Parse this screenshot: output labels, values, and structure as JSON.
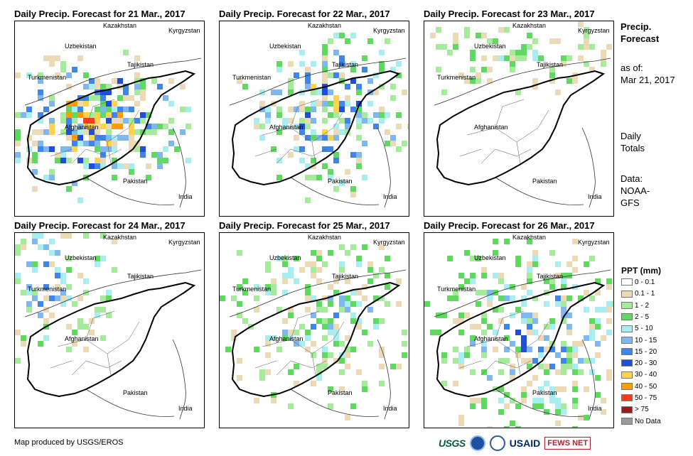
{
  "panels": [
    {
      "title": "Daily Precip. Forecast for 21 Mar., 2017",
      "precip": "heavy"
    },
    {
      "title": "Daily Precip. Forecast for 22 Mar., 2017",
      "precip": "moderate"
    },
    {
      "title": "Daily Precip. Forecast for 23 Mar., 2017",
      "precip": "light"
    },
    {
      "title": "Daily Precip. Forecast for 24 Mar., 2017",
      "precip": "light-northwest"
    },
    {
      "title": "Daily Precip. Forecast for 25 Mar., 2017",
      "precip": "scattered"
    },
    {
      "title": "Daily Precip. Forecast for 26 Mar., 2017",
      "precip": "scattered-central"
    }
  ],
  "map_labels": {
    "kazakhstan": "Kazakhstan",
    "kyrgyzstan": "Kyrgyzstan",
    "uzbekistan": "Uzbekistan",
    "tajikistan": "Tajikistan",
    "turkmenistan": "Turkmenistan",
    "afghanistan": "Afghanistan",
    "pakistan": "Pakistan",
    "india": "India"
  },
  "sidebar": {
    "title_line1": "Precip.",
    "title_line2": "Forecast",
    "asof_line1": "as of:",
    "asof_line2": "Mar 21, 2017",
    "totals_line1": "Daily",
    "totals_line2": "Totals",
    "data_line1": "Data:",
    "data_line2": "NOAA-",
    "data_line3": "GFS"
  },
  "legend": {
    "title": "PPT (mm)",
    "items": [
      {
        "label": "0 - 0.1",
        "color": "#ffffff"
      },
      {
        "label": "0.1 - 1",
        "color": "#ecd9b5"
      },
      {
        "label": "1 - 2",
        "color": "#a6eb9b"
      },
      {
        "label": "2 - 5",
        "color": "#5fd95f"
      },
      {
        "label": "5 - 10",
        "color": "#a8eef0"
      },
      {
        "label": "10 - 15",
        "color": "#7fb8f0"
      },
      {
        "label": "15 - 20",
        "color": "#3f86e8"
      },
      {
        "label": "20 - 30",
        "color": "#1f4fd8"
      },
      {
        "label": "30 - 40",
        "color": "#ffd24f"
      },
      {
        "label": "40 - 50",
        "color": "#ff9a00"
      },
      {
        "label": "50 - 75",
        "color": "#ff3a1a"
      },
      {
        "label": "> 75",
        "color": "#9b1b1b"
      },
      {
        "label": "No Data",
        "color": "#9a9a9a"
      }
    ]
  },
  "credit": "Map produced by USGS/EROS",
  "logos": {
    "usgs": "USGS",
    "usaid": "USAID",
    "fews": "FEWS NET"
  }
}
